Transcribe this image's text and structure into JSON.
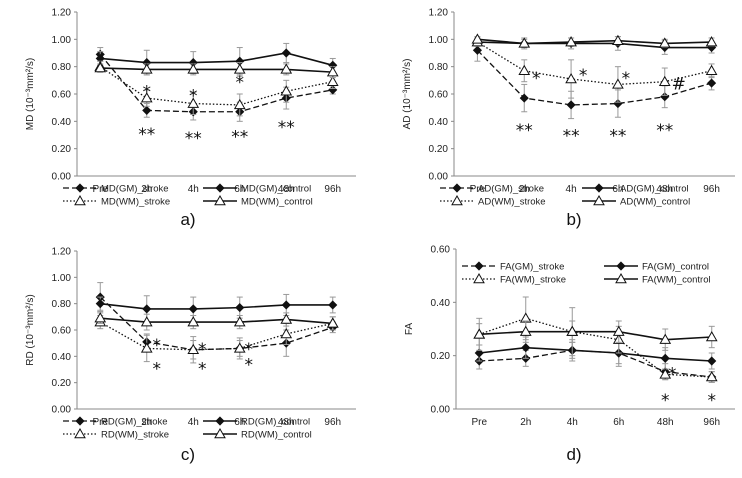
{
  "chart_data": [
    {
      "type": "line",
      "panel_label": "a)",
      "ylabel": "MD (10⁻³mm²/s)",
      "ylim": [
        0,
        1.2
      ],
      "yticks": [
        "0.00",
        "0.20",
        "0.40",
        "0.60",
        "0.80",
        "1.00",
        "1.20"
      ],
      "categories": [
        "Pre",
        "2h",
        "4h",
        "6h",
        "48h",
        "96h"
      ],
      "series": [
        {
          "name": "MD(GM)_stroke",
          "style": "dashed",
          "marker": "diamond",
          "values": [
            0.89,
            0.48,
            0.47,
            0.47,
            0.57,
            0.63
          ],
          "err": [
            0.05,
            0.05,
            0.06,
            0.07,
            0.08,
            0.03
          ]
        },
        {
          "name": "MD(GM)_control",
          "style": "solid",
          "marker": "diamond",
          "values": [
            0.86,
            0.83,
            0.83,
            0.84,
            0.9,
            0.81
          ],
          "err": [
            0.05,
            0.09,
            0.08,
            0.1,
            0.07,
            0.05
          ]
        },
        {
          "name": "MD(WM)_stroke",
          "style": "dotted",
          "marker": "triangle",
          "values": [
            0.8,
            0.57,
            0.53,
            0.52,
            0.62,
            0.69
          ],
          "err": [
            0.04,
            0.06,
            0.08,
            0.08,
            0.08,
            0.05
          ]
        },
        {
          "name": "MD(WM)_control",
          "style": "solid",
          "marker": "triangle",
          "values": [
            0.79,
            0.78,
            0.78,
            0.78,
            0.78,
            0.76
          ],
          "err": [
            0.03,
            0.04,
            0.04,
            0.05,
            0.04,
            0.04
          ]
        }
      ],
      "annotations": [
        {
          "cat": "2h",
          "text": "*",
          "y": 0.64
        },
        {
          "cat": "4h",
          "text": "*",
          "y": 0.61
        },
        {
          "cat": "6h",
          "text": "*",
          "y": 0.71
        },
        {
          "cat": "2h",
          "text": "**",
          "y": 0.33
        },
        {
          "cat": "4h",
          "text": "**",
          "y": 0.3
        },
        {
          "cat": "6h",
          "text": "**",
          "y": 0.31
        },
        {
          "cat": "48h",
          "text": "**",
          "y": 0.38
        }
      ],
      "legend": [
        [
          "MD(GM)_stroke",
          "MD(GM)_control"
        ],
        [
          "MD(WM)_stroke",
          "MD(WM)_control"
        ]
      ]
    },
    {
      "type": "line",
      "panel_label": "b)",
      "ylabel": "AD (10⁻³mm²/s)",
      "ylim": [
        0,
        1.2
      ],
      "yticks": [
        "0.00",
        "0.20",
        "0.40",
        "0.60",
        "0.80",
        "1.00",
        "1.20"
      ],
      "categories": [
        "Pre",
        "2h",
        "4h",
        "6h",
        "48h",
        "96h"
      ],
      "series": [
        {
          "name": "AD(GM)_stroke",
          "style": "dashed",
          "marker": "diamond",
          "values": [
            0.92,
            0.57,
            0.52,
            0.53,
            0.58,
            0.68
          ],
          "err": [
            0.08,
            0.1,
            0.1,
            0.1,
            0.08,
            0.05
          ]
        },
        {
          "name": "AD(GM)_control",
          "style": "solid",
          "marker": "diamond",
          "values": [
            0.98,
            0.97,
            0.97,
            0.97,
            0.94,
            0.94
          ],
          "err": [
            0.03,
            0.04,
            0.04,
            0.05,
            0.05,
            0.04
          ]
        },
        {
          "name": "AD(WM)_stroke",
          "style": "dotted",
          "marker": "triangle",
          "values": [
            0.98,
            0.77,
            0.71,
            0.67,
            0.69,
            0.77
          ],
          "err": [
            0.03,
            0.08,
            0.14,
            0.13,
            0.1,
            0.05
          ]
        },
        {
          "name": "AD(WM)_control",
          "style": "solid",
          "marker": "triangle",
          "values": [
            1.0,
            0.97,
            0.98,
            0.99,
            0.97,
            0.98
          ],
          "err": [
            0.02,
            0.03,
            0.03,
            0.03,
            0.03,
            0.03
          ]
        }
      ],
      "annotations": [
        {
          "cat": "2h",
          "text": "*",
          "y": 0.74,
          "dx": 12
        },
        {
          "cat": "4h",
          "text": "*",
          "y": 0.76,
          "dx": 12
        },
        {
          "cat": "6h",
          "text": "*",
          "y": 0.74,
          "dx": 8
        },
        {
          "cat": "48h",
          "text": "#",
          "y": 0.7,
          "dx": 14
        },
        {
          "cat": "2h",
          "text": "**",
          "y": 0.36
        },
        {
          "cat": "4h",
          "text": "**",
          "y": 0.32
        },
        {
          "cat": "6h",
          "text": "**",
          "y": 0.32
        },
        {
          "cat": "48h",
          "text": "**",
          "y": 0.36
        }
      ],
      "legend": [
        [
          "AD(GM)_stroke",
          "AD(GM)_control"
        ],
        [
          "AD(WM)_stroke",
          "AD(WM)_control"
        ]
      ]
    },
    {
      "type": "line",
      "panel_label": "c)",
      "ylabel": "RD (10⁻³mm²/s)",
      "ylim": [
        0,
        1.2
      ],
      "yticks": [
        "0.00",
        "0.20",
        "0.40",
        "0.60",
        "0.80",
        "1.00",
        "1.20"
      ],
      "categories": [
        "Pre",
        "2h",
        "4h",
        "6h",
        "48h",
        "96h"
      ],
      "series": [
        {
          "name": "RD(GM)_stroke",
          "style": "dashed",
          "marker": "diamond",
          "values": [
            0.85,
            0.51,
            0.45,
            0.46,
            0.5,
            0.62
          ],
          "err": [
            0.11,
            0.06,
            0.07,
            0.08,
            0.1,
            0.04
          ]
        },
        {
          "name": "RD(GM)_control",
          "style": "solid",
          "marker": "diamond",
          "values": [
            0.8,
            0.76,
            0.76,
            0.77,
            0.79,
            0.79
          ],
          "err": [
            0.05,
            0.1,
            0.09,
            0.08,
            0.08,
            0.06
          ]
        },
        {
          "name": "RD(WM)_stroke",
          "style": "dotted",
          "marker": "triangle",
          "values": [
            0.66,
            0.46,
            0.45,
            0.46,
            0.57,
            0.65
          ],
          "err": [
            0.05,
            0.1,
            0.1,
            0.06,
            0.08,
            0.05
          ]
        },
        {
          "name": "RD(WM)_control",
          "style": "solid",
          "marker": "triangle",
          "values": [
            0.69,
            0.66,
            0.66,
            0.66,
            0.68,
            0.65
          ],
          "err": [
            0.04,
            0.06,
            0.05,
            0.05,
            0.05,
            0.05
          ]
        }
      ],
      "annotations": [
        {
          "cat": "2h",
          "text": "*",
          "y": 0.51,
          "dx": 10
        },
        {
          "cat": "2h",
          "text": "*",
          "y": 0.33,
          "dx": 10
        },
        {
          "cat": "4h",
          "text": "*",
          "y": 0.48,
          "dx": 9
        },
        {
          "cat": "4h",
          "text": "*",
          "y": 0.33,
          "dx": 9
        },
        {
          "cat": "6h",
          "text": "*",
          "y": 0.48,
          "dx": 9
        },
        {
          "cat": "6h",
          "text": "*",
          "y": 0.36,
          "dx": 9
        }
      ],
      "legend": [
        [
          "RD(GM)_stroke",
          "RD(GM)_control"
        ],
        [
          "RD(WM)_stroke",
          "RD(WM)_control"
        ]
      ]
    },
    {
      "type": "line",
      "panel_label": "d)",
      "ylabel": "FA",
      "ylim": [
        0,
        0.6
      ],
      "yticks": [
        "0.00",
        "0.20",
        "0.40",
        "0.60"
      ],
      "categories": [
        "Pre",
        "2h",
        "4h",
        "6h",
        "48h",
        "96h"
      ],
      "series": [
        {
          "name": "FA(GM)_stroke",
          "style": "dashed",
          "marker": "diamond",
          "values": [
            0.18,
            0.19,
            0.22,
            0.21,
            0.14,
            0.12
          ],
          "err": [
            0.03,
            0.03,
            0.03,
            0.04,
            0.03,
            0.02
          ]
        },
        {
          "name": "FA(GM)_control",
          "style": "solid",
          "marker": "diamond",
          "values": [
            0.21,
            0.23,
            0.22,
            0.21,
            0.19,
            0.18
          ],
          "err": [
            0.03,
            0.04,
            0.04,
            0.05,
            0.04,
            0.03
          ]
        },
        {
          "name": "FA(WM)_stroke",
          "style": "dotted",
          "marker": "triangle",
          "values": [
            0.28,
            0.34,
            0.29,
            0.26,
            0.13,
            0.12
          ],
          "err": [
            0.06,
            0.08,
            0.09,
            0.05,
            0.02,
            0.02
          ]
        },
        {
          "name": "FA(WM)_control",
          "style": "solid",
          "marker": "triangle",
          "values": [
            0.28,
            0.29,
            0.29,
            0.29,
            0.26,
            0.27
          ],
          "err": [
            0.04,
            0.04,
            0.04,
            0.04,
            0.04,
            0.04
          ]
        }
      ],
      "annotations": [
        {
          "cat": "48h",
          "text": "*",
          "y": 0.145,
          "dx": 7
        },
        {
          "cat": "48h",
          "text": "*",
          "y": 0.045
        },
        {
          "cat": "96h",
          "text": "*",
          "y": 0.045
        }
      ],
      "legend": [
        [
          "FA(GM)_stroke",
          "FA(GM)_control"
        ],
        [
          "FA(WM)_stroke",
          "FA(WM)_control"
        ]
      ]
    }
  ]
}
